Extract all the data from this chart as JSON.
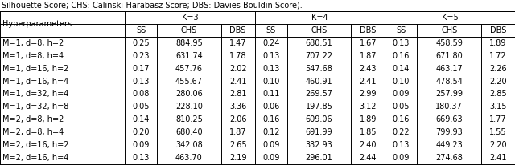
{
  "title_text": "Silhouette Score; CHS: Calinski-Harabasz Score; DBS: Davies-Bouldin Score).",
  "col_groups": [
    "K=3",
    "K=4",
    "K=5"
  ],
  "sub_cols": [
    "SS",
    "CHS",
    "DBS"
  ],
  "row_header": "Hyperparameters",
  "rows": [
    "M=1, d=8, h=2",
    "M=1, d=8, h=4",
    "M=1, d=16, h=2",
    "M=1, d=16, h=4",
    "M=1, d=32, h=4",
    "M=1, d=32, h=8",
    "M=2, d=8, h=2",
    "M=2, d=8, h=4",
    "M=2, d=16, h=2",
    "M=2, d=16, h=4"
  ],
  "data": [
    [
      0.25,
      884.95,
      1.47,
      0.24,
      680.51,
      1.67,
      0.13,
      458.59,
      1.89
    ],
    [
      0.23,
      631.74,
      1.78,
      0.13,
      707.22,
      1.87,
      0.16,
      671.8,
      1.72
    ],
    [
      0.17,
      457.76,
      2.02,
      0.13,
      547.68,
      2.43,
      0.14,
      463.17,
      2.26
    ],
    [
      0.13,
      455.67,
      2.41,
      0.1,
      460.91,
      2.41,
      0.1,
      478.54,
      2.2
    ],
    [
      0.08,
      280.06,
      2.81,
      0.11,
      269.57,
      2.99,
      0.09,
      257.99,
      2.85
    ],
    [
      0.05,
      228.1,
      3.36,
      0.06,
      197.85,
      3.12,
      0.05,
      180.37,
      3.15
    ],
    [
      0.14,
      810.25,
      2.06,
      0.16,
      609.06,
      1.89,
      0.16,
      669.63,
      1.77
    ],
    [
      0.2,
      680.4,
      1.87,
      0.12,
      691.99,
      1.85,
      0.22,
      799.93,
      1.55
    ],
    [
      0.09,
      342.08,
      2.65,
      0.09,
      332.93,
      2.4,
      0.13,
      449.23,
      2.2
    ],
    [
      0.13,
      463.7,
      2.19,
      0.09,
      296.01,
      2.44,
      0.09,
      274.68,
      2.41
    ]
  ],
  "background_color": "#ffffff",
  "text_color": "#000000",
  "font_size": 7.0,
  "header_font_size": 7.0,
  "title_font_size": 7.0
}
